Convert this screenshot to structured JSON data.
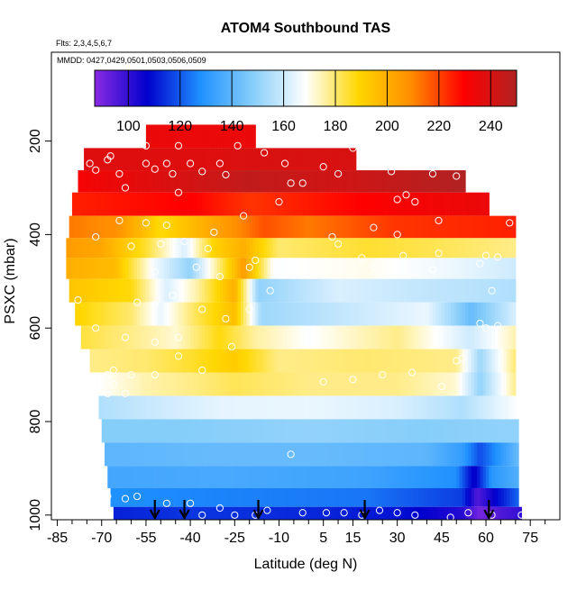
{
  "chart_data": {
    "type": "heatmap",
    "title": "ATOM4 Southbound TAS",
    "annotations": {
      "flights": "Flts: 2,3,4,5,6,7",
      "dates": "MMDD: 0427,0429,0501,0503,0506,0509"
    },
    "xlabel": "Latitude (deg N)",
    "ylabel": "PSXC (mbar)",
    "xlim": [
      -87,
      85
    ],
    "ylim": [
      1010,
      10
    ],
    "x_tick_values": [
      -85,
      -70,
      -55,
      -40,
      -25,
      -10,
      5,
      15,
      30,
      45,
      60,
      75
    ],
    "x_tick_labels": [
      "-85",
      "-70",
      "-55",
      "-40",
      "-25",
      "-10",
      "5",
      "15",
      "30",
      "45",
      "60",
      "75"
    ],
    "x_minor_ticks": [
      -80,
      -75,
      -65,
      -60,
      -50,
      -45,
      -35,
      -30,
      -20,
      -15,
      -5,
      0,
      10,
      20,
      25,
      35,
      40,
      50,
      55,
      65,
      70,
      80
    ],
    "y_tick_values": [
      200,
      400,
      600,
      800,
      1000
    ],
    "y_tick_labels": [
      "200",
      "400",
      "600",
      "800",
      "1000"
    ],
    "colorbar": {
      "range": [
        87,
        250
      ],
      "tick_values": [
        100,
        120,
        140,
        160,
        180,
        200,
        220,
        240
      ],
      "tick_labels": [
        "100",
        "120",
        "140",
        "160",
        "180",
        "200",
        "220",
        "240"
      ],
      "colors": [
        "#8a2be2",
        "#0000cd",
        "#1e90ff",
        "#87cefa",
        "#ffffff",
        "#ffd700",
        "#ff8c00",
        "#ff0000",
        "#b22222"
      ]
    },
    "profile_arrows_lat": [
      -52,
      -42,
      -17,
      19,
      61
    ],
    "layers": [
      {
        "p": 190,
        "lat_min": -55,
        "lat_max": -18,
        "tas": [
          [
            -55,
            235
          ],
          [
            -18,
            235
          ]
        ]
      },
      {
        "p": 240,
        "lat_min": -76,
        "lat_max": 16,
        "tas": [
          [
            -76,
            238
          ],
          [
            -40,
            238
          ],
          [
            -10,
            240
          ],
          [
            16,
            240
          ]
        ]
      },
      {
        "p": 285,
        "lat_min": -78,
        "lat_max": 53,
        "tas": [
          [
            -78,
            232
          ],
          [
            -20,
            246
          ],
          [
            10,
            242
          ],
          [
            53,
            250
          ]
        ]
      },
      {
        "p": 335,
        "lat_min": -80,
        "lat_max": 61,
        "tas": [
          [
            -80,
            225
          ],
          [
            -40,
            230
          ],
          [
            -20,
            222
          ],
          [
            0,
            226
          ],
          [
            30,
            232
          ],
          [
            61,
            235
          ]
        ]
      },
      {
        "p": 385,
        "lat_min": -81,
        "lat_max": 70,
        "tas": [
          [
            -81,
            212
          ],
          [
            -65,
            208
          ],
          [
            -50,
            188
          ],
          [
            -40,
            196
          ],
          [
            -25,
            208
          ],
          [
            -15,
            218
          ],
          [
            0,
            212
          ],
          [
            30,
            222
          ],
          [
            70,
            225
          ]
        ]
      },
      {
        "p": 430,
        "lat_min": -82,
        "lat_max": 70,
        "tas": [
          [
            -82,
            205
          ],
          [
            -70,
            202
          ],
          [
            -55,
            185
          ],
          [
            -42,
            162
          ],
          [
            -32,
            190
          ],
          [
            -22,
            200
          ],
          [
            -10,
            180
          ],
          [
            20,
            185
          ],
          [
            45,
            182
          ],
          [
            70,
            178
          ]
        ]
      },
      {
        "p": 470,
        "lat_min": -82,
        "lat_max": 70,
        "tas": [
          [
            -82,
            200
          ],
          [
            -65,
            196
          ],
          [
            -52,
            166
          ],
          [
            -40,
            150
          ],
          [
            -30,
            180
          ],
          [
            -22,
            205
          ],
          [
            -12,
            168
          ],
          [
            20,
            170
          ],
          [
            50,
            165
          ],
          [
            70,
            160
          ]
        ]
      },
      {
        "p": 520,
        "lat_min": -81,
        "lat_max": 70,
        "tas": [
          [
            -81,
            194
          ],
          [
            -60,
            188
          ],
          [
            -48,
            162
          ],
          [
            -38,
            175
          ],
          [
            -25,
            200
          ],
          [
            -17,
            150
          ],
          [
            10,
            162
          ],
          [
            40,
            158
          ],
          [
            70,
            155
          ]
        ]
      },
      {
        "p": 570,
        "lat_min": -79,
        "lat_max": 70,
        "tas": [
          [
            -79,
            190
          ],
          [
            -60,
            180
          ],
          [
            -50,
            165
          ],
          [
            -38,
            182
          ],
          [
            -25,
            196
          ],
          [
            -16,
            152
          ],
          [
            10,
            158
          ],
          [
            40,
            165
          ],
          [
            55,
            142
          ],
          [
            70,
            162
          ]
        ]
      },
      {
        "p": 620,
        "lat_min": -77,
        "lat_max": 70,
        "tas": [
          [
            -77,
            184
          ],
          [
            -60,
            178
          ],
          [
            -45,
            172
          ],
          [
            -30,
            188
          ],
          [
            -18,
            176
          ],
          [
            0,
            168
          ],
          [
            30,
            178
          ],
          [
            55,
            160
          ],
          [
            70,
            175
          ]
        ]
      },
      {
        "p": 670,
        "lat_min": -74,
        "lat_max": 70,
        "tas": [
          [
            -74,
            178
          ],
          [
            -55,
            180
          ],
          [
            -40,
            185
          ],
          [
            -25,
            192
          ],
          [
            -10,
            178
          ],
          [
            20,
            180
          ],
          [
            50,
            178
          ],
          [
            58,
            152
          ],
          [
            70,
            180
          ]
        ]
      },
      {
        "p": 720,
        "lat_min": -72,
        "lat_max": 70,
        "tas": [
          [
            -72,
            168
          ],
          [
            -55,
            175
          ],
          [
            -40,
            178
          ],
          [
            -25,
            182
          ],
          [
            0,
            178
          ],
          [
            30,
            178
          ],
          [
            50,
            172
          ],
          [
            58,
            150
          ],
          [
            70,
            178
          ]
        ]
      },
      {
        "p": 770,
        "lat_min": -71,
        "lat_max": 70,
        "tas": [
          [
            -71,
            155
          ],
          [
            -50,
            160
          ],
          [
            -30,
            164
          ],
          [
            0,
            165
          ],
          [
            30,
            162
          ],
          [
            52,
            155
          ],
          [
            70,
            168
          ]
        ]
      },
      {
        "p": 820,
        "lat_min": -70,
        "lat_max": 71,
        "tas": [
          [
            -70,
            148
          ],
          [
            -40,
            148
          ],
          [
            0,
            150
          ],
          [
            40,
            148
          ],
          [
            71,
            150
          ]
        ]
      },
      {
        "p": 870,
        "lat_min": -69,
        "lat_max": 71,
        "tas": [
          [
            -69,
            140
          ],
          [
            -30,
            142
          ],
          [
            0,
            142
          ],
          [
            40,
            140
          ],
          [
            52,
            132
          ],
          [
            58,
            118
          ],
          [
            71,
            142
          ]
        ]
      },
      {
        "p": 920,
        "lat_min": -68,
        "lat_max": 71,
        "tas": [
          [
            -68,
            135
          ],
          [
            -30,
            136
          ],
          [
            20,
            134
          ],
          [
            50,
            128
          ],
          [
            56,
            105
          ],
          [
            62,
            130
          ],
          [
            71,
            138
          ]
        ]
      },
      {
        "p": 965,
        "lat_min": -67,
        "lat_max": 71,
        "tas": [
          [
            -67,
            128
          ],
          [
            -30,
            126
          ],
          [
            20,
            124
          ],
          [
            52,
            116
          ],
          [
            57,
            95
          ],
          [
            62,
            105
          ],
          [
            71,
            122
          ]
        ]
      },
      {
        "p": 1000,
        "lat_min": -66,
        "lat_max": 72,
        "tas": [
          [
            -66,
            112
          ],
          [
            -40,
            115
          ],
          [
            0,
            113
          ],
          [
            30,
            110
          ],
          [
            52,
            102
          ],
          [
            58,
            90
          ],
          [
            64,
            95
          ],
          [
            72,
            100
          ]
        ]
      }
    ],
    "observation_points": [
      [
        -55,
        210
      ],
      [
        -44,
        210
      ],
      [
        -24,
        210
      ],
      [
        -86,
        240
      ],
      [
        -74,
        248
      ],
      [
        -67,
        232
      ],
      [
        -68,
        240
      ],
      [
        -55,
        248
      ],
      [
        -48,
        248
      ],
      [
        -40,
        248
      ],
      [
        -30,
        248
      ],
      [
        -15,
        225
      ],
      [
        -8,
        248
      ],
      [
        5,
        255
      ],
      [
        -72,
        262
      ],
      [
        -64,
        270
      ],
      [
        -52,
        260
      ],
      [
        -46,
        270
      ],
      [
        -36,
        265
      ],
      [
        -28,
        272
      ],
      [
        10,
        270
      ],
      [
        15,
        215
      ],
      [
        28,
        265
      ],
      [
        42,
        270
      ],
      [
        50,
        275
      ],
      [
        60,
        275
      ],
      [
        62,
        268
      ],
      [
        -62,
        300
      ],
      [
        -44,
        310
      ],
      [
        -10,
        330
      ],
      [
        -6,
        290
      ],
      [
        -2,
        290
      ],
      [
        30,
        325
      ],
      [
        33,
        315
      ],
      [
        36,
        330
      ],
      [
        -64,
        370
      ],
      [
        -55,
        375
      ],
      [
        -48,
        380
      ],
      [
        -32,
        395
      ],
      [
        -22,
        360
      ],
      [
        8,
        405
      ],
      [
        22,
        385
      ],
      [
        30,
        400
      ],
      [
        44,
        370
      ],
      [
        68,
        375
      ],
      [
        72,
        372
      ],
      [
        -72,
        405
      ],
      [
        -60,
        425
      ],
      [
        -50,
        420
      ],
      [
        -42,
        415
      ],
      [
        -34,
        430
      ],
      [
        -18,
        455
      ],
      [
        10,
        420
      ],
      [
        18,
        450
      ],
      [
        32,
        445
      ],
      [
        44,
        440
      ],
      [
        60,
        445
      ],
      [
        64,
        448
      ],
      [
        -52,
        480
      ],
      [
        -38,
        470
      ],
      [
        -30,
        490
      ],
      [
        -20,
        470
      ],
      [
        22,
        470
      ],
      [
        42,
        475
      ],
      [
        58,
        462
      ],
      [
        -78,
        540
      ],
      [
        -58,
        545
      ],
      [
        -52,
        550
      ],
      [
        -46,
        530
      ],
      [
        -36,
        560
      ],
      [
        -28,
        580
      ],
      [
        -20,
        560
      ],
      [
        -13,
        520
      ],
      [
        62,
        520
      ],
      [
        60,
        600
      ],
      [
        -72,
        600
      ],
      [
        -62,
        620
      ],
      [
        -52,
        630
      ],
      [
        -44,
        620
      ],
      [
        -26,
        640
      ],
      [
        58,
        590
      ],
      [
        64,
        595
      ],
      [
        -68,
        700
      ],
      [
        -66,
        690
      ],
      [
        -60,
        700
      ],
      [
        -52,
        700
      ],
      [
        -44,
        660
      ],
      [
        -36,
        690
      ],
      [
        5,
        715
      ],
      [
        15,
        710
      ],
      [
        25,
        700
      ],
      [
        35,
        695
      ],
      [
        45,
        725
      ],
      [
        52,
        665
      ],
      [
        -68,
        740
      ],
      [
        -66,
        720
      ],
      [
        -62,
        740
      ],
      [
        50,
        670
      ],
      [
        -72,
        800
      ],
      [
        -6,
        870
      ],
      [
        -68,
        960
      ],
      [
        -62,
        965
      ],
      [
        -58,
        960
      ],
      [
        -48,
        975
      ],
      [
        -40,
        975
      ],
      [
        -36,
        1000
      ],
      [
        -30,
        985
      ],
      [
        -25,
        1000
      ],
      [
        -18,
        1000
      ],
      [
        -14,
        990
      ],
      [
        -2,
        995
      ],
      [
        6,
        995
      ],
      [
        12,
        995
      ],
      [
        18,
        1000
      ],
      [
        24,
        990
      ],
      [
        30,
        995
      ],
      [
        36,
        1000
      ],
      [
        48,
        1005
      ],
      [
        54,
        995
      ],
      [
        62,
        1000
      ],
      [
        72,
        1000
      ]
    ]
  }
}
